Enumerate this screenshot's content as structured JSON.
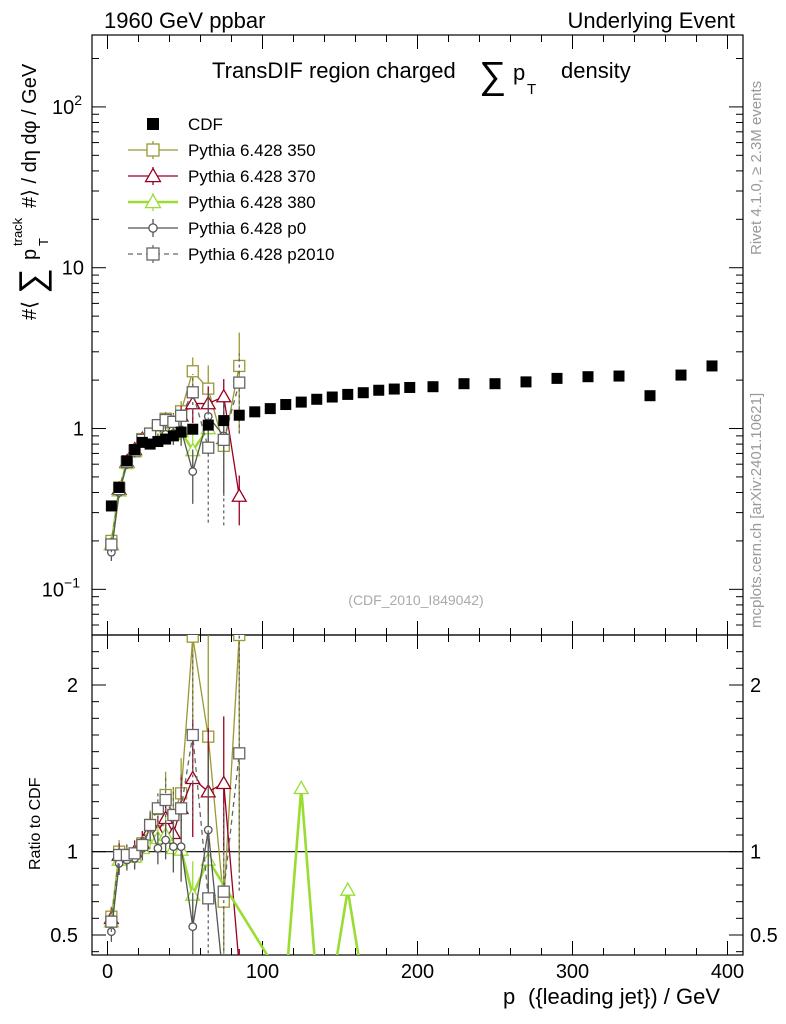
{
  "header": {
    "left": "1960 GeV ppbar",
    "right": "Underlying Event",
    "plot_title": "TransDIF region charged",
    "title_sum": "∑",
    "title_p": "p",
    "title_T": "T",
    "title_density": "density"
  },
  "side_labels": {
    "rivet": "Rivet 4.1.0, ≥ 2.3M events",
    "mcplots": "mcplots.cern.ch [arXiv:2401.10621]"
  },
  "watermark": "(CDF_2010_I849042)",
  "axes": {
    "ylabel_main": "#⟨ ∑ p_T^track #⟩ / dη dφ / GeV",
    "ylabel_main_parts": {
      "prefix": "#⟨",
      "sum": "∑",
      "p": "p",
      "sup": "track",
      "sub": "T",
      "mid": "#⟩ / dη dφ / GeV"
    },
    "ylabel_ratio": "Ratio to CDF",
    "xlabel_parts": {
      "p": "p",
      "sub": "T",
      "rest": "({leading jet}) / GeV"
    },
    "main_yticks": [
      {
        "value": 0.1,
        "base": "10",
        "exp": "−1"
      },
      {
        "value": 1,
        "base": "1",
        "exp": ""
      },
      {
        "value": 10,
        "base": "10",
        "exp": ""
      },
      {
        "value": 100,
        "base": "10",
        "exp": "2"
      }
    ],
    "ratio_yticks": [
      {
        "value": 0.5,
        "label": "0.5"
      },
      {
        "value": 1,
        "label": "1"
      },
      {
        "value": 2,
        "label": "2"
      }
    ],
    "xticks": [
      0,
      100,
      200,
      300,
      400
    ]
  },
  "chart_data": {
    "type": "scatter",
    "title": "TransDIF region charged ∑ p_T density",
    "xlabel": "p_T({leading jet}) / GeV",
    "ylabel": "#⟨ ∑ p_T^track #⟩ / dη dφ / GeV",
    "xlim": [
      -10,
      410
    ],
    "ylim": [
      0.052,
      280
    ],
    "yscale": "log",
    "ratio_ylim": [
      0.38,
      2.3
    ],
    "legend_position": "top-left",
    "series": [
      {
        "name": "CDF",
        "color": "#000000",
        "marker": "filled-square",
        "line": "none",
        "x": [
          2.5,
          7.5,
          12.5,
          17.5,
          22.5,
          27.5,
          32.5,
          37.5,
          42.5,
          47.5,
          55,
          65,
          75,
          85,
          95,
          105,
          115,
          125,
          135,
          145,
          155,
          165,
          175,
          185,
          195,
          210,
          230,
          250,
          270,
          290,
          310,
          330,
          350,
          370,
          390
        ],
        "y": [
          0.33,
          0.43,
          0.63,
          0.74,
          0.82,
          0.8,
          0.83,
          0.86,
          0.9,
          0.95,
          0.99,
          1.05,
          1.12,
          1.21,
          1.27,
          1.33,
          1.41,
          1.46,
          1.52,
          1.57,
          1.63,
          1.67,
          1.73,
          1.76,
          1.8,
          1.82,
          1.9,
          1.9,
          1.95,
          2.05,
          2.1,
          2.12,
          1.6,
          2.15,
          2.45
        ]
      },
      {
        "name": "Pythia 6.428 350",
        "color": "#999933",
        "marker": "open-square",
        "line": "solid",
        "x": [
          2.5,
          7.5,
          12.5,
          17.5,
          22.5,
          27.5,
          32.5,
          37.5,
          42.5,
          47.5,
          55,
          65,
          75,
          85
        ],
        "y": [
          0.2,
          0.43,
          0.61,
          0.72,
          0.86,
          0.93,
          0.99,
          1.15,
          1.1,
          1.28,
          2.27,
          1.77,
          0.78,
          2.45
        ],
        "yerr": [
          0.02,
          0.03,
          0.04,
          0.05,
          0.06,
          0.07,
          0.09,
          0.12,
          0.15,
          0.2,
          0.5,
          0.7,
          0.4,
          1.5
        ],
        "ratio": [
          0.61,
          1.0,
          0.97,
          0.97,
          1.05,
          1.16,
          1.19,
          1.34,
          1.22,
          1.35,
          2.29,
          1.69,
          0.7,
          2.3
        ]
      },
      {
        "name": "Pythia 6.428 370",
        "color": "#990022",
        "marker": "open-triangle",
        "line": "solid",
        "x": [
          2.5,
          7.5,
          12.5,
          17.5,
          22.5,
          27.5,
          32.5,
          37.5,
          42.5,
          47.5,
          55,
          65,
          75,
          85
        ],
        "y": [
          0.19,
          0.42,
          0.62,
          0.74,
          0.86,
          0.9,
          0.93,
          1.03,
          1.0,
          1.2,
          1.43,
          1.43,
          1.58,
          0.38
        ],
        "yerr": [
          0.02,
          0.03,
          0.04,
          0.05,
          0.06,
          0.07,
          0.08,
          0.1,
          0.13,
          0.18,
          0.35,
          0.4,
          0.45,
          0.13
        ],
        "ratio": [
          0.6,
          0.98,
          0.98,
          1.0,
          1.05,
          1.13,
          1.12,
          1.2,
          1.11,
          1.26,
          1.44,
          1.36,
          1.41,
          0.31
        ]
      },
      {
        "name": "Pythia 6.428 380",
        "color": "#99DD33",
        "marker": "open-triangle",
        "line": "thick-solid",
        "x": [
          2.5,
          7.5,
          12.5,
          17.5,
          22.5,
          27.5,
          32.5,
          37.5,
          42.5,
          47.5,
          55,
          65
        ],
        "y": [
          0.19,
          0.41,
          0.61,
          0.72,
          0.84,
          0.88,
          0.9,
          0.95,
          0.92,
          0.96,
          0.73,
          1.0
        ],
        "yerr": [
          0.02,
          0.03,
          0.04,
          0.05,
          0.06,
          0.07,
          0.08,
          0.1,
          0.12,
          0.15,
          0.2,
          0.3
        ],
        "ratio": [
          0.58,
          0.95,
          0.97,
          0.97,
          1.02,
          1.1,
          1.08,
          1.1,
          1.02,
          1.01,
          0.74,
          0.95
        ],
        "ratio_extra_x": [
          115,
          125,
          135,
          145,
          155,
          165
        ],
        "ratio_extra": [
          0.2,
          1.38,
          0.2,
          0.2,
          0.77,
          0.2
        ]
      },
      {
        "name": "Pythia 6.428 p0",
        "color": "#555555",
        "marker": "open-circle",
        "line": "solid",
        "x": [
          2.5,
          7.5,
          12.5,
          17.5,
          22.5,
          27.5,
          32.5,
          37.5,
          42.5,
          47.5,
          55,
          65,
          75
        ],
        "y": [
          0.17,
          0.4,
          0.6,
          0.71,
          0.84,
          0.92,
          0.85,
          0.92,
          0.93,
          0.98,
          0.54,
          1.19,
          0.9
        ],
        "yerr": [
          0.02,
          0.03,
          0.04,
          0.05,
          0.06,
          0.07,
          0.08,
          0.1,
          0.14,
          0.2,
          0.2,
          0.5,
          0.5
        ],
        "ratio": [
          0.52,
          0.93,
          0.95,
          0.96,
          1.02,
          1.15,
          1.02,
          1.07,
          1.03,
          1.03,
          0.55,
          1.13,
          0.2
        ]
      },
      {
        "name": "Pythia 6.428 p2010",
        "color": "#666666",
        "marker": "open-square",
        "line": "dashed",
        "x": [
          2.5,
          7.5,
          12.5,
          17.5,
          22.5,
          27.5,
          32.5,
          37.5,
          42.5,
          47.5,
          55,
          65,
          75,
          85
        ],
        "y": [
          0.19,
          0.42,
          0.62,
          0.73,
          0.85,
          0.93,
          1.05,
          1.13,
          1.1,
          1.2,
          1.68,
          0.76,
          0.85,
          1.93
        ],
        "yerr": [
          0.02,
          0.03,
          0.04,
          0.05,
          0.06,
          0.07,
          0.09,
          0.12,
          0.15,
          0.2,
          0.5,
          0.5,
          0.6,
          1.0
        ],
        "ratio": [
          0.58,
          0.98,
          0.98,
          0.99,
          1.04,
          1.16,
          1.26,
          1.31,
          1.22,
          1.26,
          1.7,
          0.72,
          0.76,
          1.59
        ]
      }
    ]
  }
}
